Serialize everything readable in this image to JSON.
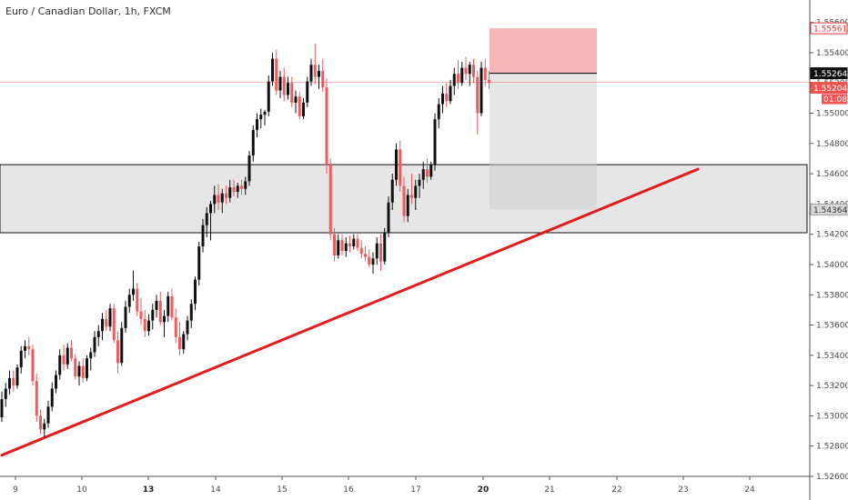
{
  "title": "Euro / Canadian Dollar, 1h, FXCM",
  "chart_data": {
    "type": "candlestick",
    "title": "Euro / Canadian Dollar, 1h, FXCM",
    "symbol": "EURCAD",
    "timeframe": "1h",
    "source": "FXCM",
    "x_ticks": [
      "9",
      "10",
      "13",
      "14",
      "15",
      "16",
      "17",
      "20",
      "21",
      "22",
      "23",
      "24"
    ],
    "x_ticks_bold": [
      "13",
      "20"
    ],
    "y_ticks": [
      "1.52600",
      "1.52800",
      "1.53000",
      "1.53200",
      "1.53400",
      "1.53600",
      "1.53800",
      "1.54000",
      "1.54200",
      "1.54400",
      "1.54600",
      "1.54800",
      "1.55000",
      "1.55200",
      "1.55400",
      "1.55600"
    ],
    "ylim": [
      1.526,
      1.5573
    ],
    "price_labels": [
      {
        "label": "1.55561",
        "value": 1.55561,
        "style": "sell-stop",
        "color": "#e53935"
      },
      {
        "label": "1.55264",
        "value": 1.55264,
        "style": "entry",
        "color": "#000000"
      },
      {
        "label": "1.55204",
        "value": 1.55204,
        "style": "last-price",
        "color": "#ef5350"
      },
      {
        "label": "01:08",
        "style": "countdown",
        "color": "#ef5350"
      },
      {
        "label": "1.54364",
        "value": 1.54364,
        "style": "target",
        "color": "#555555"
      }
    ],
    "current_price": 1.55204,
    "bar_countdown": "01:08",
    "support_zone": {
      "top": 1.5466,
      "bottom": 1.5421
    },
    "short_position": {
      "stop": 1.55561,
      "entry": 1.55264,
      "target": 1.54364
    },
    "trendline": {
      "from": {
        "bar": 0,
        "price": 1.5274
      },
      "to": {
        "bar": 180,
        "price": 1.5463
      }
    },
    "candles": [
      [
        1.5299,
        1.5316,
        1.5296,
        1.5311
      ],
      [
        1.5311,
        1.5322,
        1.5306,
        1.5318
      ],
      [
        1.5318,
        1.533,
        1.5314,
        1.5325
      ],
      [
        1.5325,
        1.533,
        1.5316,
        1.532
      ],
      [
        1.532,
        1.5334,
        1.5318,
        1.5332
      ],
      [
        1.5332,
        1.5346,
        1.5328,
        1.5343
      ],
      [
        1.5343,
        1.535,
        1.5338,
        1.5346
      ],
      [
        1.5346,
        1.5352,
        1.534,
        1.5344
      ],
      [
        1.5344,
        1.5347,
        1.532,
        1.5323
      ],
      [
        1.5323,
        1.5328,
        1.5296,
        1.53
      ],
      [
        1.53,
        1.5304,
        1.5288,
        1.5291
      ],
      [
        1.5291,
        1.5298,
        1.5286,
        1.5295
      ],
      [
        1.5295,
        1.531,
        1.5292,
        1.5306
      ],
      [
        1.5306,
        1.5322,
        1.5303,
        1.5318
      ],
      [
        1.5318,
        1.533,
        1.5315,
        1.5327
      ],
      [
        1.5327,
        1.5344,
        1.5324,
        1.534
      ],
      [
        1.534,
        1.5347,
        1.533,
        1.5334
      ],
      [
        1.5334,
        1.5348,
        1.5331,
        1.5345
      ],
      [
        1.5345,
        1.535,
        1.5336,
        1.5338
      ],
      [
        1.5338,
        1.5341,
        1.5324,
        1.5326
      ],
      [
        1.5326,
        1.5336,
        1.532,
        1.5333
      ],
      [
        1.5333,
        1.5338,
        1.5322,
        1.5325
      ],
      [
        1.5325,
        1.534,
        1.5323,
        1.5338
      ],
      [
        1.5338,
        1.5345,
        1.533,
        1.5342
      ],
      [
        1.5342,
        1.5356,
        1.5339,
        1.5352
      ],
      [
        1.5352,
        1.536,
        1.5346,
        1.5356
      ],
      [
        1.5356,
        1.5368,
        1.535,
        1.5364
      ],
      [
        1.5364,
        1.537,
        1.5356,
        1.5359
      ],
      [
        1.5359,
        1.5374,
        1.5356,
        1.5371
      ],
      [
        1.5371,
        1.5374,
        1.5348,
        1.535
      ],
      [
        1.535,
        1.5356,
        1.5328,
        1.5335
      ],
      [
        1.5335,
        1.5362,
        1.5333,
        1.5358
      ],
      [
        1.5358,
        1.5376,
        1.5355,
        1.5372
      ],
      [
        1.5372,
        1.5384,
        1.5368,
        1.538
      ],
      [
        1.538,
        1.5396,
        1.5376,
        1.5384
      ],
      [
        1.5384,
        1.5388,
        1.5366,
        1.5369
      ],
      [
        1.5369,
        1.5378,
        1.536,
        1.5364
      ],
      [
        1.5364,
        1.537,
        1.5352,
        1.5356
      ],
      [
        1.5356,
        1.5367,
        1.5353,
        1.5363
      ],
      [
        1.5363,
        1.5374,
        1.5357,
        1.537
      ],
      [
        1.537,
        1.538,
        1.5365,
        1.5376
      ],
      [
        1.5376,
        1.5382,
        1.536,
        1.5362
      ],
      [
        1.5362,
        1.537,
        1.5352,
        1.5366
      ],
      [
        1.5366,
        1.5382,
        1.5362,
        1.5379
      ],
      [
        1.5379,
        1.5384,
        1.5363,
        1.5365
      ],
      [
        1.5365,
        1.5371,
        1.5348,
        1.5352
      ],
      [
        1.5352,
        1.5362,
        1.534,
        1.5344
      ],
      [
        1.5344,
        1.5356,
        1.5341,
        1.5354
      ],
      [
        1.5354,
        1.5366,
        1.535,
        1.5363
      ],
      [
        1.5363,
        1.5377,
        1.5358,
        1.5374
      ],
      [
        1.5374,
        1.5392,
        1.537,
        1.539
      ],
      [
        1.539,
        1.5415,
        1.5386,
        1.5412
      ],
      [
        1.5412,
        1.543,
        1.5408,
        1.5426
      ],
      [
        1.5426,
        1.5438,
        1.5418,
        1.5434
      ],
      [
        1.5434,
        1.5442,
        1.5416,
        1.544
      ],
      [
        1.544,
        1.5452,
        1.5434,
        1.5446
      ],
      [
        1.5446,
        1.5453,
        1.5436,
        1.5441
      ],
      [
        1.5441,
        1.545,
        1.5434,
        1.5447
      ],
      [
        1.5447,
        1.5452,
        1.544,
        1.5444
      ],
      [
        1.5444,
        1.5456,
        1.5441,
        1.5451
      ],
      [
        1.5451,
        1.5456,
        1.5445,
        1.5448
      ],
      [
        1.5448,
        1.5454,
        1.5444,
        1.5452
      ],
      [
        1.5452,
        1.5456,
        1.5446,
        1.545
      ],
      [
        1.545,
        1.5458,
        1.5446,
        1.5455
      ],
      [
        1.5455,
        1.5475,
        1.5452,
        1.5472
      ],
      [
        1.5472,
        1.5492,
        1.5468,
        1.5489
      ],
      [
        1.5489,
        1.55,
        1.5484,
        1.5496
      ],
      [
        1.5496,
        1.5503,
        1.549,
        1.5499
      ],
      [
        1.5499,
        1.5502,
        1.5492,
        1.5501
      ],
      [
        1.5501,
        1.5525,
        1.5498,
        1.5521
      ],
      [
        1.5521,
        1.554,
        1.5518,
        1.5536
      ],
      [
        1.5536,
        1.5542,
        1.5512,
        1.5515
      ],
      [
        1.5515,
        1.5528,
        1.551,
        1.5524
      ],
      [
        1.5524,
        1.553,
        1.5508,
        1.5512
      ],
      [
        1.5512,
        1.5524,
        1.5509,
        1.552
      ],
      [
        1.552,
        1.5524,
        1.5504,
        1.5507
      ],
      [
        1.5507,
        1.5515,
        1.55,
        1.5511
      ],
      [
        1.5511,
        1.5514,
        1.5496,
        1.5498
      ],
      [
        1.5498,
        1.551,
        1.5496,
        1.5507
      ],
      [
        1.5507,
        1.5524,
        1.5504,
        1.5521
      ],
      [
        1.5521,
        1.5536,
        1.5518,
        1.5532
      ],
      [
        1.5532,
        1.5546,
        1.5519,
        1.5524
      ],
      [
        1.5524,
        1.5532,
        1.5516,
        1.5528
      ],
      [
        1.5528,
        1.5536,
        1.5514,
        1.5517
      ],
      [
        1.5517,
        1.5523,
        1.546,
        1.5466
      ],
      [
        1.5466,
        1.547,
        1.5416,
        1.542
      ],
      [
        1.542,
        1.5424,
        1.5402,
        1.5406
      ],
      [
        1.5406,
        1.542,
        1.5404,
        1.5416
      ],
      [
        1.5416,
        1.542,
        1.5406,
        1.5409
      ],
      [
        1.5409,
        1.5418,
        1.5405,
        1.5414
      ],
      [
        1.5414,
        1.5419,
        1.5408,
        1.5412
      ],
      [
        1.5412,
        1.542,
        1.541,
        1.5417
      ],
      [
        1.5417,
        1.542,
        1.5409,
        1.5411
      ],
      [
        1.5411,
        1.5416,
        1.5404,
        1.5407
      ],
      [
        1.5407,
        1.5412,
        1.5402,
        1.5405
      ],
      [
        1.5405,
        1.541,
        1.5398,
        1.54
      ],
      [
        1.54,
        1.5408,
        1.5394,
        1.5404
      ],
      [
        1.5404,
        1.5418,
        1.54,
        1.5414
      ],
      [
        1.5414,
        1.542,
        1.5396,
        1.5402
      ],
      [
        1.5402,
        1.5424,
        1.54,
        1.5421
      ],
      [
        1.5421,
        1.5445,
        1.5418,
        1.5441
      ],
      [
        1.5441,
        1.546,
        1.5436,
        1.5456
      ],
      [
        1.5456,
        1.548,
        1.5452,
        1.5476
      ],
      [
        1.5476,
        1.5482,
        1.5448,
        1.5452
      ],
      [
        1.5452,
        1.5458,
        1.5428,
        1.5432
      ],
      [
        1.5432,
        1.545,
        1.5428,
        1.5446
      ],
      [
        1.5446,
        1.546,
        1.544,
        1.5444
      ],
      [
        1.5444,
        1.5456,
        1.5436,
        1.5452
      ],
      [
        1.5452,
        1.546,
        1.5444,
        1.5456
      ],
      [
        1.5456,
        1.5468,
        1.545,
        1.5463
      ],
      [
        1.5463,
        1.547,
        1.5454,
        1.5458
      ],
      [
        1.5458,
        1.5468,
        1.5456,
        1.5466
      ],
      [
        1.5466,
        1.55,
        1.5462,
        1.5496
      ],
      [
        1.5496,
        1.551,
        1.549,
        1.5506
      ],
      [
        1.5506,
        1.5518,
        1.55,
        1.5513
      ],
      [
        1.5513,
        1.552,
        1.5504,
        1.5508
      ],
      [
        1.5508,
        1.5522,
        1.5506,
        1.5518
      ],
      [
        1.5518,
        1.553,
        1.5512,
        1.5526
      ],
      [
        1.5526,
        1.5535,
        1.5516,
        1.552
      ],
      [
        1.552,
        1.5534,
        1.5518,
        1.553
      ],
      [
        1.553,
        1.5537,
        1.5522,
        1.5526
      ],
      [
        1.5526,
        1.5534,
        1.5518,
        1.5532
      ],
      [
        1.5532,
        1.5536,
        1.552,
        1.5524
      ],
      [
        1.5524,
        1.5528,
        1.5486,
        1.55
      ],
      [
        1.55,
        1.5534,
        1.5498,
        1.553
      ],
      [
        1.553,
        1.5536,
        1.5518,
        1.5522
      ],
      [
        1.5522,
        1.5528,
        1.5516,
        1.552
      ]
    ]
  }
}
